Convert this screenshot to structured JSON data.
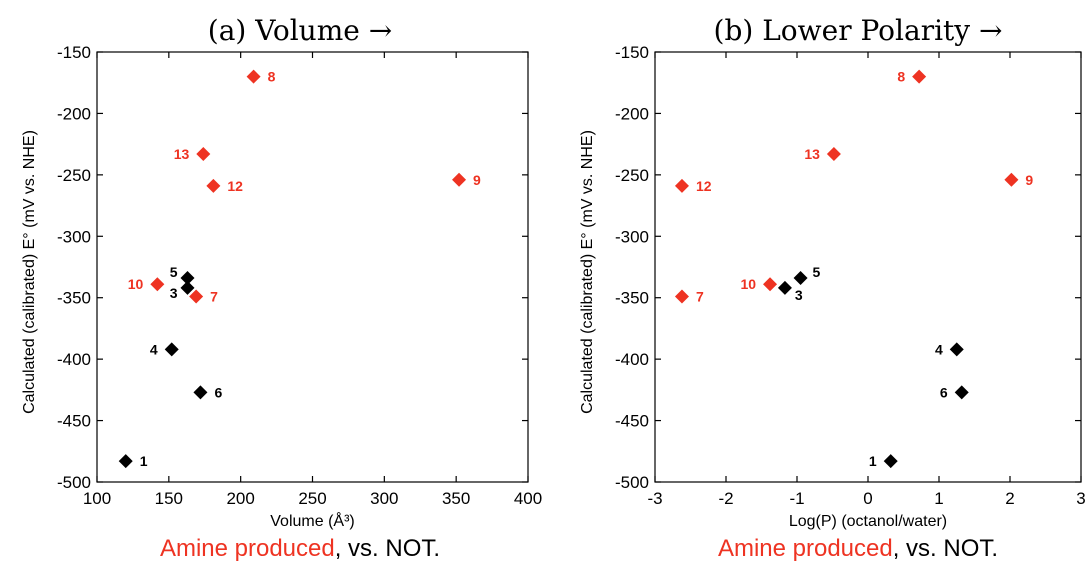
{
  "captions": {
    "highlight": "Amine produced",
    "rest": ", vs. NOT."
  },
  "colors": {
    "amine": "#ee3322",
    "not": "#000000"
  },
  "chart_data": [
    {
      "type": "scatter",
      "title": "(a) Volume →",
      "xlabel": "Volume (Å³)",
      "ylabel": "Calculated (calibrated) E° (mV vs. NHE)",
      "xlim": [
        100,
        400
      ],
      "ylim": [
        -500,
        -150
      ],
      "xticks": [
        100,
        150,
        200,
        250,
        300,
        350,
        400
      ],
      "yticks": [
        -150,
        -200,
        -250,
        -300,
        -350,
        -400,
        -450,
        -500
      ],
      "grid": false,
      "points": [
        {
          "label": "8",
          "x": 209,
          "y": -170,
          "amine": true,
          "side": "right"
        },
        {
          "label": "13",
          "x": 174,
          "y": -233,
          "amine": true,
          "side": "left"
        },
        {
          "label": "12",
          "x": 181,
          "y": -259,
          "amine": true,
          "side": "right"
        },
        {
          "label": "9",
          "x": 352,
          "y": -254,
          "amine": true,
          "side": "right"
        },
        {
          "label": "10",
          "x": 142,
          "y": -339,
          "amine": true,
          "side": "left"
        },
        {
          "label": "7",
          "x": 169,
          "y": -349,
          "amine": true,
          "side": "right"
        },
        {
          "label": "5",
          "x": 163,
          "y": -334,
          "amine": false,
          "side": "left-up"
        },
        {
          "label": "3",
          "x": 163,
          "y": -342,
          "amine": false,
          "side": "left-down"
        },
        {
          "label": "4",
          "x": 152,
          "y": -392,
          "amine": false,
          "side": "left"
        },
        {
          "label": "6",
          "x": 172,
          "y": -427,
          "amine": false,
          "side": "right"
        },
        {
          "label": "1",
          "x": 120,
          "y": -483,
          "amine": false,
          "side": "right"
        }
      ]
    },
    {
      "type": "scatter",
      "title": "(b) Lower Polarity →",
      "xlabel": "Log(P) (octanol/water)",
      "ylabel": "Calculated (calibrated) E° (mV vs. NHE)",
      "xlim": [
        -3,
        3
      ],
      "ylim": [
        -500,
        -150
      ],
      "xticks": [
        -3,
        -2,
        -1,
        0,
        1,
        2,
        3
      ],
      "yticks": [
        -150,
        -200,
        -250,
        -300,
        -350,
        -400,
        -450,
        -500
      ],
      "grid": false,
      "points": [
        {
          "label": "8",
          "x": 0.72,
          "y": -170,
          "amine": true,
          "side": "left"
        },
        {
          "label": "13",
          "x": -0.48,
          "y": -233,
          "amine": true,
          "side": "left"
        },
        {
          "label": "12",
          "x": -2.62,
          "y": -259,
          "amine": true,
          "side": "right"
        },
        {
          "label": "9",
          "x": 2.02,
          "y": -254,
          "amine": true,
          "side": "right"
        },
        {
          "label": "10",
          "x": -1.38,
          "y": -339,
          "amine": true,
          "side": "left"
        },
        {
          "label": "7",
          "x": -2.62,
          "y": -349,
          "amine": true,
          "side": "right"
        },
        {
          "label": "5",
          "x": -0.95,
          "y": -334,
          "amine": false,
          "side": "right-up"
        },
        {
          "label": "3",
          "x": -1.17,
          "y": -342,
          "amine": false,
          "side": "right-down"
        },
        {
          "label": "4",
          "x": 1.25,
          "y": -392,
          "amine": false,
          "side": "left"
        },
        {
          "label": "6",
          "x": 1.32,
          "y": -427,
          "amine": false,
          "side": "left"
        },
        {
          "label": "1",
          "x": 0.32,
          "y": -483,
          "amine": false,
          "side": "left"
        }
      ]
    }
  ]
}
